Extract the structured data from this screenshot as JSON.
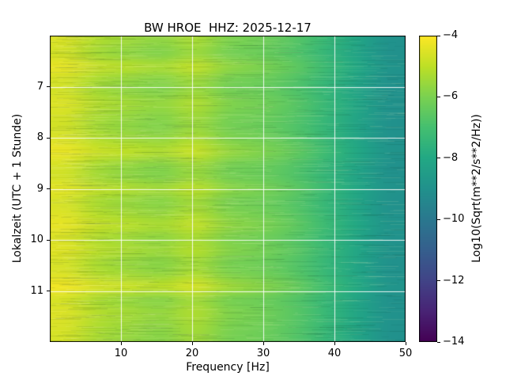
{
  "chart_data": {
    "type": "heatmap",
    "subtype": "spectrogram",
    "title": "BW HROE  HHZ: 2025-12-17",
    "station": "BW HROE",
    "channel": "HHZ",
    "date": "2025-12-17",
    "xlabel": "Frequency [Hz]",
    "ylabel": "Lokalzeit (UTC + 1 Stunde)",
    "xlim": [
      0,
      50
    ],
    "time_range": [
      6.0,
      12.0
    ],
    "y_axis_direction": "time-increases-downward",
    "x_ticks": [
      10,
      20,
      30,
      40,
      50
    ],
    "x_tick_labels": [
      "10",
      "20",
      "30",
      "40",
      "50"
    ],
    "y_ticks": [
      7,
      8,
      9,
      10,
      11
    ],
    "y_tick_labels": [
      "7",
      "8",
      "9",
      "10",
      "11"
    ],
    "grid": true,
    "grid_color": "white",
    "colormap": "viridis",
    "colorbar": {
      "label": "Log10(Sqrt(m**2/s**2/Hz))",
      "vmin": -14,
      "vmax": -4,
      "ticks": [
        -4,
        -6,
        -8,
        -10,
        -12,
        -14
      ],
      "tick_labels": [
        "−4",
        "−6",
        "−8",
        "−10",
        "−12",
        "−14"
      ],
      "position": "right"
    },
    "freqs": [
      0,
      5,
      10,
      15,
      20,
      25,
      30,
      35,
      40,
      45,
      50
    ],
    "times": [
      6.0,
      6.25,
      6.5,
      6.75,
      7.0,
      7.25,
      7.5,
      7.75,
      8.0,
      8.25,
      8.5,
      8.75,
      9.0,
      9.25,
      9.5,
      9.75,
      10.0,
      10.25,
      10.5,
      10.75,
      11.0,
      11.25,
      11.5,
      11.75,
      12.0
    ],
    "values": [
      [
        -4.58,
        -5.22,
        -5.5,
        -5.7,
        -5.3,
        -5.94,
        -6.18,
        -6.6,
        -7.32,
        -8.14,
        -8.96
      ],
      [
        -4.7,
        -5.4,
        -5.7,
        -5.9,
        -5.5,
        -6.1,
        -6.3,
        -6.7,
        -7.4,
        -8.2,
        -9.0
      ],
      [
        -4.34,
        -4.86,
        -5.1,
        -5.3,
        -4.9,
        -5.62,
        -5.94,
        -6.4,
        -7.16,
        -8.02,
        -8.88
      ],
      [
        -4.64,
        -5.31,
        -5.6,
        -5.8,
        -5.4,
        -6.02,
        -6.24,
        -6.65,
        -7.36,
        -8.17,
        -8.98
      ],
      [
        -4.7,
        -5.4,
        -5.7,
        -5.9,
        -5.5,
        -6.1,
        -6.3,
        -6.7,
        -7.4,
        -8.2,
        -9.0
      ],
      [
        -4.52,
        -5.13,
        -5.4,
        -5.6,
        -5.2,
        -5.86,
        -6.12,
        -6.55,
        -7.28,
        -8.11,
        -8.94
      ],
      [
        -4.64,
        -5.31,
        -5.6,
        -5.8,
        -5.4,
        -6.02,
        -6.24,
        -6.65,
        -7.36,
        -8.17,
        -8.98
      ],
      [
        -4.7,
        -5.4,
        -5.7,
        -5.9,
        -5.5,
        -6.1,
        -6.3,
        -6.7,
        -7.4,
        -8.2,
        -9.0
      ],
      [
        -4.52,
        -5.13,
        -5.4,
        -5.6,
        -5.2,
        -5.86,
        -6.12,
        -6.55,
        -7.28,
        -8.11,
        -8.94
      ],
      [
        -4.28,
        -4.77,
        -5.0,
        -5.2,
        -4.8,
        -5.54,
        -5.88,
        -6.35,
        -7.12,
        -7.99,
        -8.86
      ],
      [
        -4.64,
        -5.31,
        -5.6,
        -5.8,
        -5.4,
        -6.02,
        -6.24,
        -6.65,
        -7.36,
        -8.17,
        -8.98
      ],
      [
        -4.7,
        -5.4,
        -5.7,
        -5.9,
        -5.5,
        -6.1,
        -6.3,
        -6.7,
        -7.4,
        -8.2,
        -9.0
      ],
      [
        -4.4,
        -4.95,
        -5.2,
        -5.4,
        -5.0,
        -5.7,
        -6.0,
        -6.45,
        -7.2,
        -8.05,
        -8.9
      ],
      [
        -4.64,
        -5.31,
        -5.6,
        -5.8,
        -5.4,
        -6.02,
        -6.24,
        -6.65,
        -7.36,
        -8.17,
        -8.98
      ],
      [
        -4.52,
        -5.13,
        -5.4,
        -5.6,
        -5.2,
        -5.86,
        -6.12,
        -6.55,
        -7.28,
        -8.11,
        -8.94
      ],
      [
        -4.34,
        -4.86,
        -5.1,
        -5.3,
        -4.9,
        -5.62,
        -5.94,
        -6.4,
        -7.16,
        -8.02,
        -8.88
      ],
      [
        -4.58,
        -5.22,
        -5.5,
        -5.7,
        -5.3,
        -5.94,
        -6.18,
        -6.6,
        -7.32,
        -8.14,
        -8.96
      ],
      [
        -4.46,
        -5.04,
        -5.3,
        -5.5,
        -5.1,
        -5.78,
        -6.06,
        -6.5,
        -7.24,
        -8.08,
        -8.92
      ],
      [
        -4.64,
        -5.31,
        -5.6,
        -5.8,
        -5.4,
        -6.02,
        -6.24,
        -6.65,
        -7.36,
        -8.17,
        -8.98
      ],
      [
        -4.52,
        -5.13,
        -5.4,
        -5.6,
        -5.2,
        -5.86,
        -6.12,
        -6.55,
        -7.28,
        -8.11,
        -8.94
      ],
      [
        -4.16,
        -4.59,
        -4.8,
        -5.0,
        -4.6,
        -5.38,
        -5.76,
        -6.25,
        -7.04,
        -7.93,
        -8.82
      ],
      [
        -4.64,
        -5.31,
        -5.6,
        -5.8,
        -5.4,
        -6.02,
        -6.24,
        -6.65,
        -7.36,
        -8.17,
        -8.98
      ],
      [
        -4.52,
        -5.13,
        -5.4,
        -5.6,
        -5.2,
        -5.86,
        -6.12,
        -6.55,
        -7.28,
        -8.11,
        -8.94
      ],
      [
        -4.58,
        -5.22,
        -5.5,
        -5.7,
        -5.3,
        -5.94,
        -6.18,
        -6.6,
        -7.32,
        -8.14,
        -8.96
      ],
      [
        -4.64,
        -5.31,
        -5.6,
        -5.8,
        -5.4,
        -6.02,
        -6.24,
        -6.65,
        -7.36,
        -8.17,
        -8.98
      ]
    ]
  }
}
